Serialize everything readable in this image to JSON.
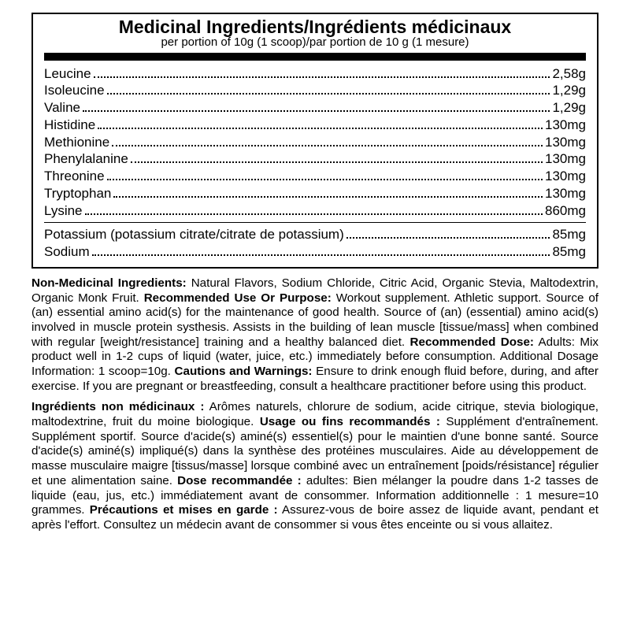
{
  "panel": {
    "title": "Medicinal Ingredients/Ingrédients médicinaux",
    "subtitle": "per portion of 10g (1 scoop)/par portion de 10 g (1 mesure)",
    "group1": [
      {
        "name": "Leucine",
        "val": "2,58g"
      },
      {
        "name": "Isoleucine",
        "val": "1,29g"
      },
      {
        "name": "Valine",
        "val": "1,29g"
      },
      {
        "name": "Histidine",
        "val": "130mg"
      },
      {
        "name": "Methionine",
        "val": "130mg"
      },
      {
        "name": "Phenylalanine",
        "val": "130mg"
      },
      {
        "name": "Threonine",
        "val": "130mg"
      },
      {
        "name": "Tryptophan",
        "val": "130mg"
      },
      {
        "name": "Lysine",
        "val": "860mg"
      }
    ],
    "group2": [
      {
        "name": "Potassium (potassium citrate/citrate de potassium)",
        "val": "85mg"
      },
      {
        "name": "Sodium",
        "val": "85mg"
      }
    ]
  },
  "text_en": {
    "h1": "Non-Medicinal Ingredients:",
    "t1": " Natural Flavors, Sodium Chloride, Citric Acid, Organic Stevia, Maltodextrin, Organic Monk Fruit. ",
    "h2": "Recommended Use Or Purpose:",
    "t2": " Workout supplement. Athletic support. Source of (an) essential amino acid(s) for the maintenance of good health. Source of (an) (essential) amino acid(s) involved in muscle protein systhesis. Assists in the building of lean muscle [tissue/mass] when combined with regular [weight/resistance] training and a healthy balanced diet. ",
    "h3": "Recommended Dose:",
    "t3": " Adults: Mix product well in 1-2 cups of liquid (water, juice, etc.) immediately before consumption. Additional Dosage Information: 1 scoop=10g. ",
    "h4": "Cautions and Warnings:",
    "t4": " Ensure to drink enough fluid before, during, and after exercise. If you are pregnant or breastfeeding, consult a healthcare practitioner before using this product."
  },
  "text_fr": {
    "h1": "Ingrédients non médicinaux :",
    "t1": " Arômes naturels, chlorure de sodium, acide citrique, stevia biologique, maltodextrine, fruit du moine biologique. ",
    "h2": "Usage ou fins recommandés :",
    "t2": " Supplément d'entraînement. Supplément sportif. Source d'acide(s) aminé(s) essentiel(s) pour le maintien d'une bonne santé. Source d'acide(s) aminé(s) impliqué(s) dans la synthèse des protéines musculaires. Aide au développement de masse musculaire maigre [tissus/masse] lorsque combiné avec un entraînement [poids/résistance] régulier et une alimentation saine. ",
    "h3": "Dose recommandée :",
    "t3": " adultes: Bien mélanger la poudre dans 1-2 tasses de liquide (eau, jus, etc.) immédiatement avant de consommer. Information additionnelle : 1 mesure=10 grammes. ",
    "h4": "Précautions et mises en garde :",
    "t4": " Assurez-vous de boire assez de liquide avant, pendant et après l'effort. Consultez un médecin avant de consommer si vous êtes enceinte ou si vous allaitez."
  }
}
